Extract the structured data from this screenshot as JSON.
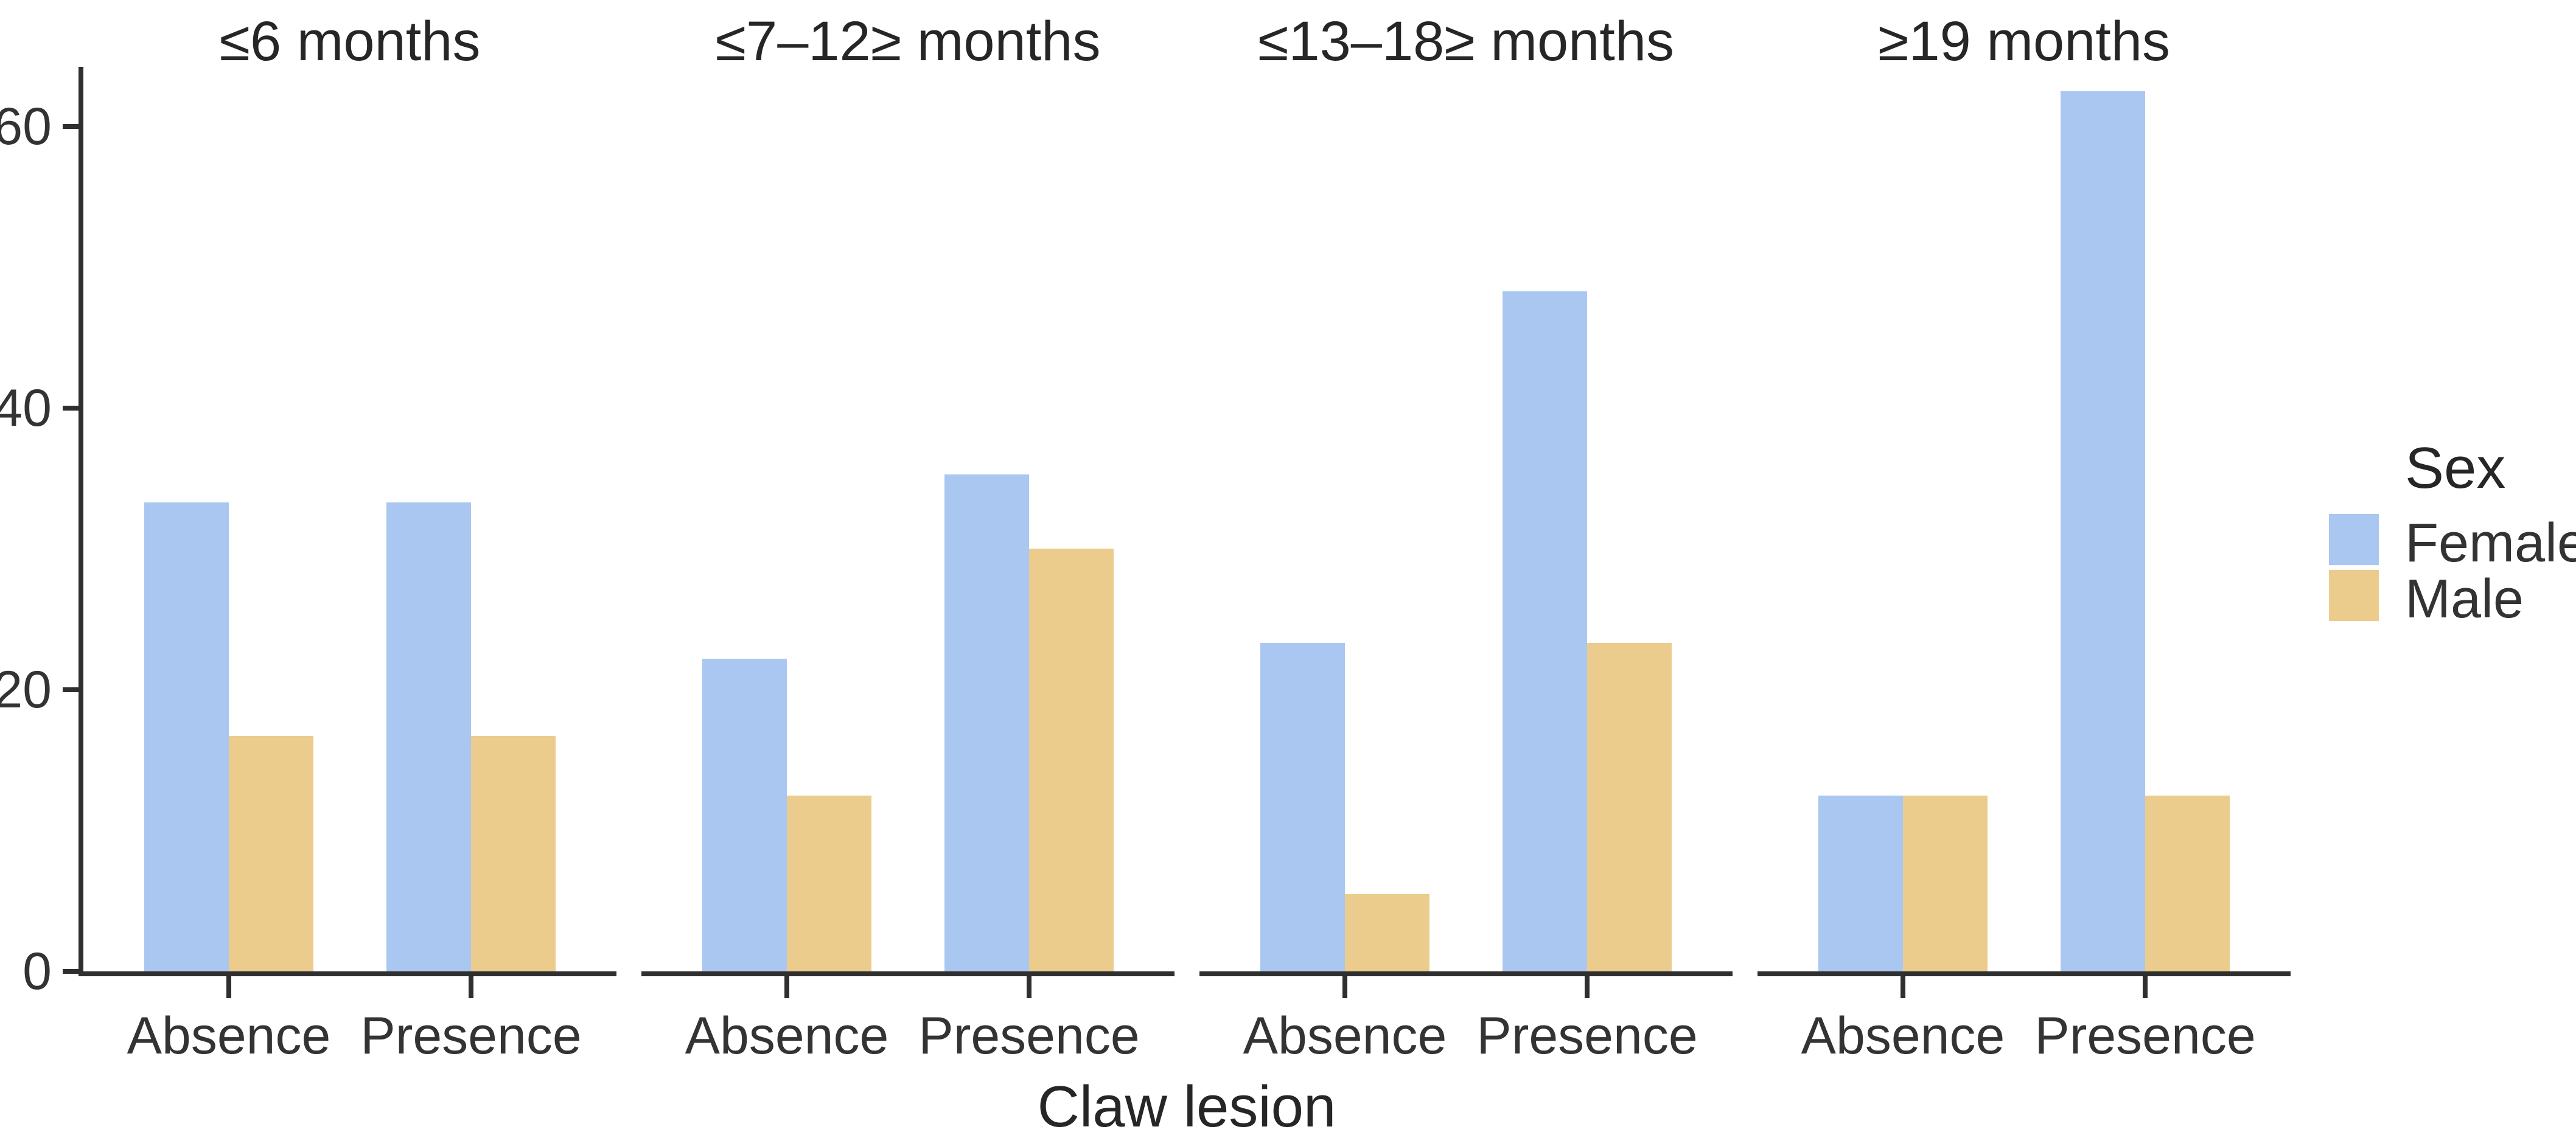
{
  "figure": {
    "background": "#ffffff",
    "axis_color": "#2f2f2f",
    "text_color": "#333333"
  },
  "chart_data": {
    "type": "bar",
    "variant": "grouped-faceted",
    "title": "",
    "xlabel": "Claw lesion",
    "ylabel": "",
    "facets": [
      "≤6 months",
      "≤7–12≥ months",
      "≤13–18≥ months",
      "≥19 months"
    ],
    "categories": [
      "Absence",
      "Presence"
    ],
    "series": [
      {
        "name": "Female",
        "color": "#A9C7F0",
        "values": [
          [
            33.3,
            33.3
          ],
          [
            22.2,
            35.3
          ],
          [
            23.3,
            48.3
          ],
          [
            12.5,
            62.5
          ]
        ]
      },
      {
        "name": "Male",
        "color": "#ECCC8D",
        "values": [
          [
            16.7,
            16.7
          ],
          [
            12.5,
            30.0
          ],
          [
            5.5,
            23.3
          ],
          [
            12.5,
            12.5
          ]
        ]
      }
    ],
    "y_ticks": [
      0,
      20,
      40,
      60
    ],
    "ylim": [
      0,
      64
    ],
    "grid": false,
    "legend": {
      "title": "Sex",
      "entries": [
        "Female",
        "Male"
      ],
      "position": "right"
    }
  }
}
